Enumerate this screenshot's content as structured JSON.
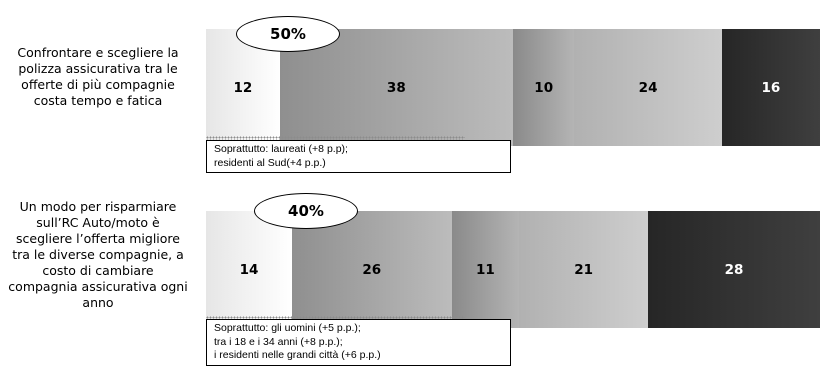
{
  "chart_data": {
    "type": "bar",
    "orientation": "horizontal",
    "stacked": true,
    "rows": [
      {
        "label": "Confrontare e scegliere la polizza assicurativa tra le offerte di più compagnie costa tempo e fatica",
        "label_lines": [
          "Confrontare e scegliere la",
          "polizza assicurativa tra le",
          "offerte di più compagnie",
          "costa tempo e fatica"
        ],
        "values": [
          12,
          38,
          10,
          24,
          16
        ],
        "callout": "50%",
        "note_lines": [
          "Soprattutto: laureati (+8 p.p);",
          "residenti al Sud(+4 p.p.)"
        ]
      },
      {
        "label": "Un modo per risparmiare sull'RC Auto/moto è scegliere l'offerta migliore tra le diverse compagnie, a costo di cambiare compagnia assicurativa ogni anno",
        "label_lines": [
          "Un modo per risparmiare",
          "sull’RC Auto/moto è",
          "scegliere l’offerta migliore",
          "tra le diverse compagnie, a",
          "costo di cambiare",
          "compagnia assicurativa ogni",
          "anno"
        ],
        "values": [
          14,
          26,
          11,
          21,
          28
        ],
        "callout": "40%",
        "note_lines": [
          "Soprattutto: gli uomini (+5 p.p.);",
          "tra i 18 e i 34 anni (+8 p.p.);",
          "i residenti nelle grandi città (+6 p.p.)"
        ]
      }
    ],
    "segment_colors": [
      "#f3f3f3",
      "#8c8c8c",
      "#9f9f9f",
      "#bdbdbd",
      "#262626"
    ],
    "segment_text_colors": [
      "#000000",
      "#000000",
      "#000000",
      "#000000",
      "#ffffff"
    ],
    "xlim": [
      0,
      100
    ],
    "title": "",
    "xlabel": "",
    "ylabel": ""
  }
}
